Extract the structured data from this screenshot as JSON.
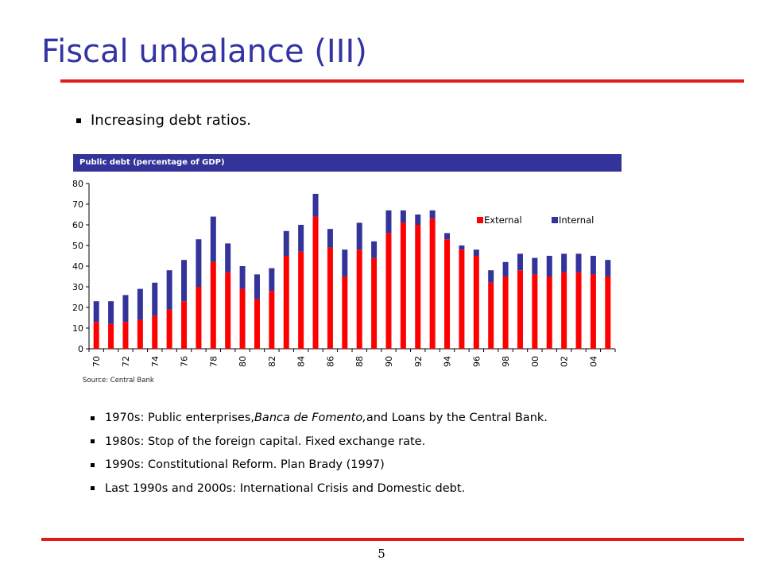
{
  "slide": {
    "title": "Fiscal unbalance (III)",
    "main_bullet": "Increasing debt ratios.",
    "page_number": "5",
    "colors": {
      "title": "#3333a3",
      "rule": "#e31a1a",
      "header_bar": "#333399"
    }
  },
  "chart_data": {
    "type": "bar",
    "stacked": true,
    "title": "Public debt (percentage of GDP)",
    "source": "Source: Central Bank",
    "x": [
      1970,
      1971,
      1972,
      1973,
      1974,
      1975,
      1976,
      1977,
      1978,
      1979,
      1980,
      1981,
      1982,
      1983,
      1984,
      1985,
      1986,
      1987,
      1988,
      1989,
      1990,
      1991,
      1992,
      1993,
      1994,
      1995,
      1996,
      1997,
      1998,
      1999,
      2000,
      2001,
      2002,
      2003,
      2004,
      2005
    ],
    "tick_labels": [
      "70",
      "72",
      "74",
      "76",
      "78",
      "80",
      "82",
      "84",
      "86",
      "88",
      "90",
      "92",
      "94",
      "96",
      "98",
      "00",
      "02",
      "04"
    ],
    "ylim": [
      0,
      80
    ],
    "yticks": [
      0,
      10,
      20,
      30,
      40,
      50,
      60,
      70,
      80
    ],
    "legend": "top-right",
    "grid": false,
    "series": [
      {
        "name": "External",
        "color": "#ff0000",
        "values": [
          13,
          12,
          13,
          14,
          16,
          19,
          23,
          30,
          42,
          37,
          29,
          24,
          28,
          45,
          47,
          64,
          49,
          35,
          48,
          44,
          56,
          61,
          60,
          63,
          53,
          48,
          45,
          32,
          35,
          38,
          36,
          35,
          37,
          37,
          36,
          35
        ]
      },
      {
        "name": "Internal",
        "color": "#333399",
        "values": [
          10,
          11,
          13,
          15,
          16,
          19,
          20,
          23,
          22,
          14,
          11,
          12,
          11,
          12,
          13,
          11,
          9,
          13,
          13,
          8,
          11,
          6,
          5,
          4,
          3,
          2,
          3,
          6,
          7,
          8,
          8,
          10,
          9,
          9,
          9,
          8
        ]
      }
    ]
  },
  "bullets": [
    {
      "pre": "1970s: Public enterprises, ",
      "italic": "Banca de Fomento,",
      "post": " and Loans by the Central Bank."
    },
    {
      "pre": "1980s: Stop of the foreign capital. Fixed exchange rate.",
      "italic": "",
      "post": ""
    },
    {
      "pre": "1990s: Constitutional Reform. Plan Brady (1997)",
      "italic": "",
      "post": ""
    },
    {
      "pre": "Last 1990s and 2000s: International Crisis and Domestic debt.",
      "italic": "",
      "post": ""
    }
  ]
}
